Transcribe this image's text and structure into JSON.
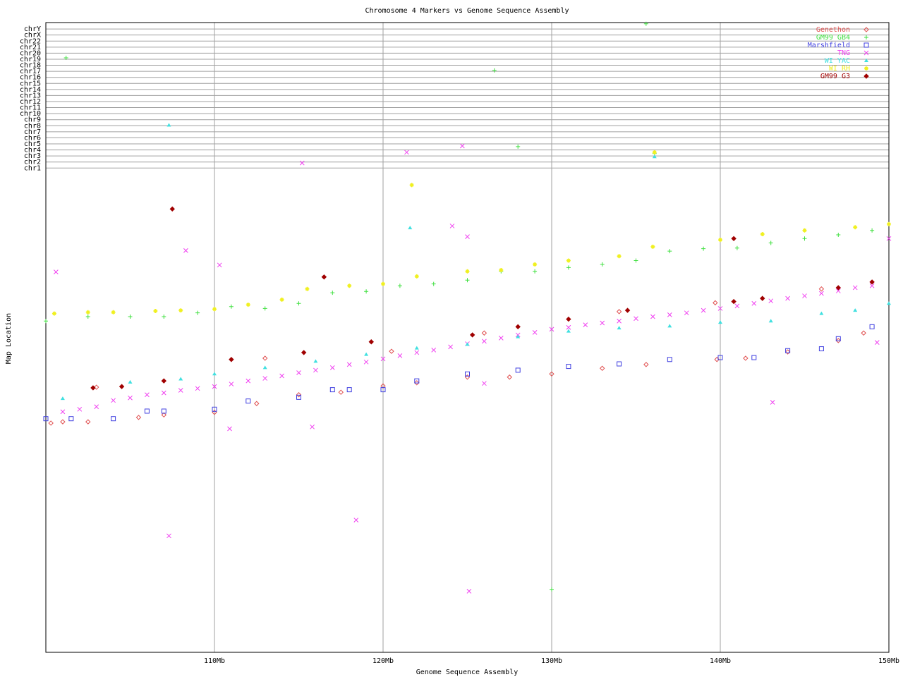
{
  "chart_data": {
    "type": "scatter",
    "title": "Chromosome 4 Markers vs Genome Sequence Assembly",
    "x_label": "Genome Sequence Assembly",
    "y_label": "Map Location",
    "xlim": [
      100,
      150
    ],
    "xticks": [
      {
        "value": 110,
        "label": "110Mb"
      },
      {
        "value": 120,
        "label": "120Mb"
      },
      {
        "value": 130,
        "label": "130Mb"
      },
      {
        "value": 140,
        "label": "140Mb"
      },
      {
        "value": 150,
        "label": "150Mb"
      }
    ],
    "ylim": [
      0,
      100
    ],
    "yticks": [
      {
        "value": 76.9,
        "label": "chr1"
      },
      {
        "value": 77.86,
        "label": "chr2"
      },
      {
        "value": 78.82,
        "label": "chr3"
      },
      {
        "value": 79.78,
        "label": "chr4"
      },
      {
        "value": 80.74,
        "label": "chr5"
      },
      {
        "value": 81.7,
        "label": "chr6"
      },
      {
        "value": 82.66,
        "label": "chr7"
      },
      {
        "value": 83.62,
        "label": "chr8"
      },
      {
        "value": 84.58,
        "label": "chr9"
      },
      {
        "value": 85.54,
        "label": "chr10"
      },
      {
        "value": 86.5,
        "label": "chr11"
      },
      {
        "value": 87.46,
        "label": "chr12"
      },
      {
        "value": 88.42,
        "label": "chr13"
      },
      {
        "value": 89.38,
        "label": "chr14"
      },
      {
        "value": 90.34,
        "label": "chr15"
      },
      {
        "value": 91.3,
        "label": "chr16"
      },
      {
        "value": 92.26,
        "label": "chr17"
      },
      {
        "value": 93.22,
        "label": "chr18"
      },
      {
        "value": 94.18,
        "label": "chr19"
      },
      {
        "value": 95.14,
        "label": "chr20"
      },
      {
        "value": 96.1,
        "label": "chr21"
      },
      {
        "value": 97.06,
        "label": "chr22"
      },
      {
        "value": 98.02,
        "label": "chrX"
      },
      {
        "value": 98.98,
        "label": "chrY"
      }
    ],
    "grid": true,
    "legend": "top-right",
    "series": [
      {
        "name": "Genethon",
        "color": "#e05050",
        "marker": "diamond",
        "x": [
          100.3,
          101,
          102.5,
          105.5,
          107,
          110,
          112.5,
          115,
          117.5,
          120,
          122,
          125,
          127.5,
          130,
          133,
          135.6,
          139.8,
          141.5,
          144,
          147,
          148.5,
          103,
          113,
          120.5,
          126,
          134,
          139.7,
          146
        ],
        "values": [
          36.4,
          36.6,
          36.6,
          37.3,
          37.7,
          38.1,
          39.5,
          40.9,
          41.3,
          42.3,
          42.8,
          43.7,
          43.7,
          44.2,
          45.1,
          45.7,
          46.5,
          46.7,
          47.7,
          49.5,
          50.7,
          42.1,
          46.7,
          47.8,
          50.7,
          54.1,
          55.5,
          57.7
        ]
      },
      {
        "name": "GM99 GB4",
        "color": "#40e040",
        "marker": "plus",
        "x": [
          100,
          102.5,
          105,
          107,
          109,
          111,
          113,
          115,
          117,
          119,
          121,
          123,
          125,
          127,
          129,
          131,
          133,
          135,
          137,
          139,
          141,
          143,
          145,
          147,
          149,
          101.2,
          126.6,
          128,
          135.6,
          130,
          136.1
        ],
        "values": [
          52.6,
          53.3,
          53.3,
          53.3,
          53.9,
          54.9,
          54.6,
          55.4,
          57.1,
          57.3,
          58.2,
          58.5,
          59.1,
          60.5,
          60.5,
          61.1,
          61.6,
          62.2,
          63.7,
          64.1,
          64.2,
          65.0,
          65.7,
          66.3,
          67.0,
          94.4,
          92.4,
          80.3,
          99.8,
          10.0,
          79.2
        ]
      },
      {
        "name": "Marshfield",
        "color": "#4040e0",
        "marker": "square",
        "x": [
          100,
          101.5,
          104,
          106,
          107,
          110,
          112,
          115,
          117,
          118,
          120,
          122,
          125,
          128,
          131,
          134,
          137,
          140,
          142,
          144,
          146,
          147,
          149
        ],
        "values": [
          37.1,
          37.1,
          37.1,
          38.3,
          38.3,
          38.6,
          39.9,
          40.5,
          41.7,
          41.7,
          41.7,
          43.1,
          44.2,
          44.8,
          45.4,
          45.8,
          46.5,
          46.8,
          46.8,
          47.9,
          48.2,
          49.8,
          51.7
        ]
      },
      {
        "name": "TNG",
        "color": "#f040f0",
        "marker": "x",
        "x": [
          101,
          102,
          103,
          104,
          105,
          106,
          107,
          108,
          109,
          110,
          111,
          112,
          113,
          114,
          115,
          116,
          117,
          118,
          119,
          120,
          121,
          122,
          123,
          124,
          125,
          126,
          127,
          128,
          129,
          130,
          131,
          132,
          133,
          134,
          135,
          136,
          137,
          138,
          139,
          140,
          141,
          142,
          143,
          144,
          145,
          146,
          147,
          148,
          149,
          100.6,
          108.3,
          110.3,
          107.3,
          115.2,
          121.4,
          124.1,
          124.7,
          125.1,
          118.4,
          110.9,
          115.8,
          143.1,
          149.3,
          150,
          126,
          125
        ],
        "values": [
          38.2,
          38.6,
          39.0,
          40.0,
          40.4,
          40.9,
          41.2,
          41.6,
          41.9,
          42.2,
          42.6,
          43.1,
          43.5,
          43.9,
          44.4,
          44.8,
          45.2,
          45.7,
          46.1,
          46.6,
          47.1,
          47.6,
          48.0,
          48.5,
          49.0,
          49.4,
          49.9,
          50.4,
          50.8,
          51.3,
          51.6,
          52.0,
          52.3,
          52.6,
          53.0,
          53.3,
          53.6,
          53.9,
          54.3,
          54.6,
          55.0,
          55.4,
          55.8,
          56.2,
          56.6,
          57.0,
          57.4,
          57.9,
          58.2,
          60.4,
          63.8,
          61.5,
          18.5,
          77.7,
          79.4,
          67.7,
          80.4,
          9.7,
          21.0,
          35.5,
          35.8,
          39.7,
          49.2,
          65.7,
          42.7,
          66.0
        ]
      },
      {
        "name": "WI YAC",
        "color": "#40e0e0",
        "marker": "triangle",
        "x": [
          101,
          105,
          108,
          110,
          113,
          116,
          119,
          122,
          125,
          128,
          131,
          134,
          137,
          140,
          143,
          146,
          148,
          150,
          107.3,
          121.6,
          136.1
        ],
        "values": [
          40.3,
          42.9,
          43.4,
          44.2,
          45.2,
          46.2,
          47.3,
          48.3,
          48.9,
          50.1,
          51.0,
          51.5,
          51.8,
          52.4,
          52.6,
          53.8,
          54.3,
          55.4,
          83.7,
          67.4,
          78.7
        ]
      },
      {
        "name": "WI RH",
        "color": "#f0f020",
        "marker": "star",
        "x": [
          100.5,
          102.5,
          104,
          106.5,
          108,
          110,
          112,
          114,
          115.5,
          118,
          120,
          122,
          125,
          127,
          129,
          131,
          134,
          136,
          140,
          142.5,
          145,
          148,
          150,
          121.7,
          136.1
        ],
        "values": [
          53.8,
          54.0,
          54.0,
          54.2,
          54.3,
          54.5,
          55.2,
          56.0,
          57.7,
          58.2,
          58.5,
          59.7,
          60.5,
          60.7,
          61.6,
          62.2,
          62.9,
          64.4,
          65.5,
          66.4,
          67.0,
          67.5,
          68.0,
          74.2,
          79.4
        ]
      },
      {
        "name": "GM99 G3",
        "color": "#a00000",
        "marker": "filled-diamond",
        "x": [
          102.8,
          104.5,
          107,
          111,
          115.3,
          119.3,
          125.3,
          128,
          131,
          134.5,
          140.8,
          142.5,
          147,
          149,
          107.5,
          140.8,
          116.5
        ],
        "values": [
          42.0,
          42.2,
          43.1,
          46.5,
          47.6,
          49.3,
          50.4,
          51.7,
          52.9,
          54.3,
          55.7,
          56.2,
          57.9,
          58.8,
          70.4,
          65.7,
          59.6
        ]
      }
    ]
  }
}
